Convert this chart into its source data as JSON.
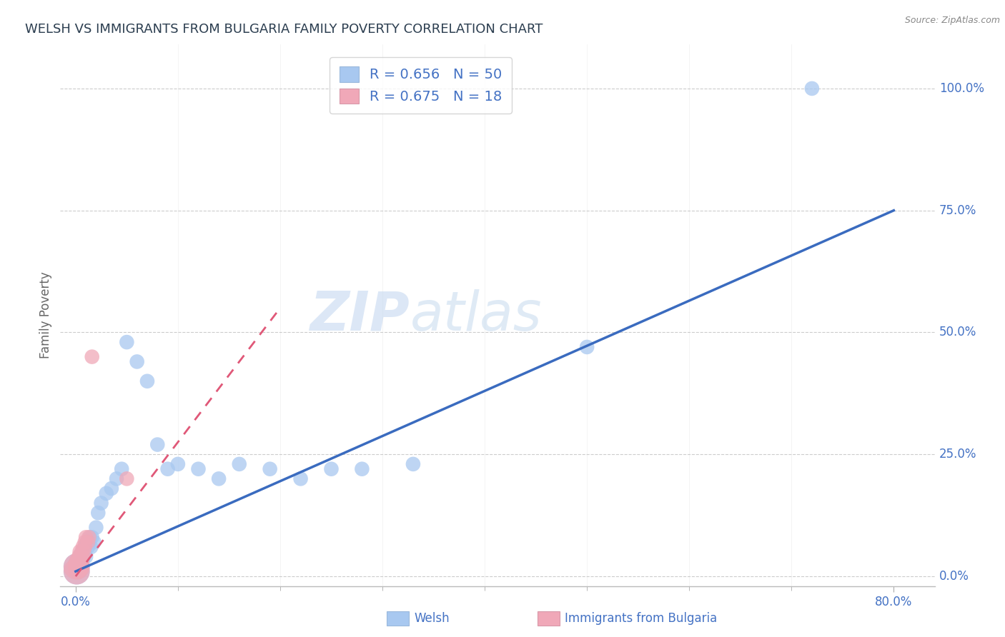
{
  "title": "WELSH VS IMMIGRANTS FROM BULGARIA FAMILY POVERTY CORRELATION CHART",
  "source": "Source: ZipAtlas.com",
  "ylabel": "Family Poverty",
  "legend_r_welsh": "R = 0.656",
  "legend_n_welsh": "N = 50",
  "legend_r_bulgaria": "R = 0.675",
  "legend_n_bulgaria": "N = 18",
  "welsh_color": "#a8c8f0",
  "bulgaria_color": "#f0a8b8",
  "trend_welsh_color": "#3a6bbf",
  "trend_bulgaria_color": "#e05878",
  "watermark_zip": "ZIP",
  "watermark_atlas": "atlas",
  "background_color": "#ffffff",
  "title_color": "#2c3e50",
  "tick_label_color": "#4472c4",
  "source_color": "#888888",
  "welsh_x": [
    0.001,
    0.001,
    0.002,
    0.002,
    0.003,
    0.003,
    0.004,
    0.004,
    0.005,
    0.005,
    0.006,
    0.006,
    0.007,
    0.007,
    0.008,
    0.008,
    0.009,
    0.009,
    0.01,
    0.01,
    0.011,
    0.012,
    0.013,
    0.014,
    0.015,
    0.016,
    0.018,
    0.02,
    0.022,
    0.025,
    0.03,
    0.035,
    0.04,
    0.045,
    0.05,
    0.06,
    0.07,
    0.08,
    0.09,
    0.1,
    0.12,
    0.14,
    0.16,
    0.19,
    0.22,
    0.25,
    0.28,
    0.33,
    0.5,
    0.72
  ],
  "welsh_y": [
    0.01,
    0.02,
    0.015,
    0.025,
    0.02,
    0.03,
    0.025,
    0.035,
    0.03,
    0.04,
    0.035,
    0.045,
    0.04,
    0.05,
    0.04,
    0.055,
    0.05,
    0.06,
    0.04,
    0.065,
    0.07,
    0.06,
    0.07,
    0.08,
    0.06,
    0.08,
    0.07,
    0.1,
    0.13,
    0.15,
    0.17,
    0.18,
    0.2,
    0.22,
    0.48,
    0.44,
    0.4,
    0.27,
    0.22,
    0.23,
    0.22,
    0.2,
    0.23,
    0.22,
    0.2,
    0.22,
    0.22,
    0.23,
    0.47,
    1.0
  ],
  "bg_x": [
    0.001,
    0.001,
    0.002,
    0.002,
    0.003,
    0.004,
    0.004,
    0.005,
    0.005,
    0.006,
    0.007,
    0.008,
    0.009,
    0.01,
    0.012,
    0.013,
    0.016,
    0.05
  ],
  "bg_y": [
    0.01,
    0.02,
    0.015,
    0.025,
    0.03,
    0.02,
    0.04,
    0.03,
    0.05,
    0.04,
    0.05,
    0.06,
    0.07,
    0.08,
    0.07,
    0.08,
    0.45,
    0.2
  ],
  "welsh_trend_x": [
    0.0,
    0.8
  ],
  "welsh_trend_y": [
    0.01,
    0.75
  ],
  "bg_trend_x": [
    0.0,
    0.2
  ],
  "bg_trend_y": [
    0.0,
    0.55
  ],
  "xlim": [
    -0.015,
    0.84
  ],
  "ylim": [
    -0.02,
    1.09
  ],
  "ytick_vals": [
    0.0,
    0.25,
    0.5,
    0.75,
    1.0
  ],
  "ytick_labels": [
    "0.0%",
    "25.0%",
    "50.0%",
    "75.0%",
    "100.0%"
  ],
  "xtick_vals": [
    0.0,
    0.8
  ],
  "xtick_labels": [
    "0.0%",
    "80.0%"
  ],
  "xtick_minor": [
    0.1,
    0.2,
    0.3,
    0.4,
    0.5,
    0.6,
    0.7
  ],
  "grid_color": "#cccccc",
  "scatter_size": 220,
  "scatter_size_large": 700,
  "scatter_size_medium": 380
}
